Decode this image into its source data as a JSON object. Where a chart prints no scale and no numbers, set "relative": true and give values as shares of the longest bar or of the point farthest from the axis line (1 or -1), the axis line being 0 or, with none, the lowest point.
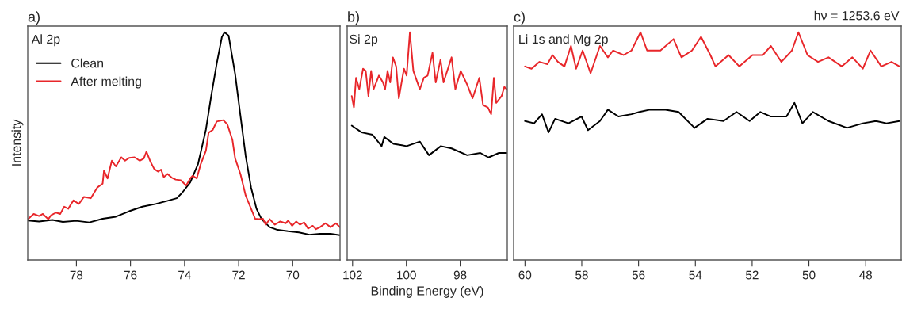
{
  "chart_data": [
    {
      "type": "line",
      "title": "a)",
      "ylabel": "Intensity",
      "annotations": [
        "Al 2p"
      ],
      "relative": true,
      "legend": "top left",
      "grid": false,
      "xlim": [
        79.8,
        68.25
      ],
      "xticks": [
        78,
        76,
        74,
        72,
        70
      ],
      "series": [
        {
          "name": "Clean",
          "color": "#000000",
          "x": [
            79.79,
            79.38,
            78.89,
            78.5,
            78.01,
            77.52,
            77.03,
            76.54,
            76.05,
            75.56,
            75.07,
            74.68,
            74.29,
            74.09,
            73.79,
            73.5,
            73.21,
            73.01,
            72.81,
            72.62,
            72.52,
            72.37,
            72.13,
            71.93,
            71.74,
            71.54,
            71.34,
            71.15,
            70.85,
            70.56,
            70.17,
            69.77,
            69.38,
            68.99,
            68.6,
            68.26
          ],
          "values": [
            0.173,
            0.169,
            0.176,
            0.167,
            0.172,
            0.165,
            0.181,
            0.19,
            0.214,
            0.234,
            0.246,
            0.258,
            0.271,
            0.295,
            0.341,
            0.422,
            0.573,
            0.724,
            0.863,
            0.979,
            1.0,
            0.985,
            0.817,
            0.631,
            0.457,
            0.318,
            0.225,
            0.179,
            0.144,
            0.132,
            0.126,
            0.121,
            0.111,
            0.115,
            0.115,
            0.109
          ]
        },
        {
          "name": "After melting",
          "color": "#e8262a",
          "x": [
            79.79,
            79.58,
            79.38,
            79.24,
            79.04,
            78.94,
            78.75,
            78.6,
            78.45,
            78.3,
            78.11,
            77.91,
            77.72,
            77.47,
            77.23,
            77.03,
            76.98,
            76.85,
            76.69,
            76.54,
            76.34,
            76.2,
            76.05,
            75.85,
            75.66,
            75.51,
            75.41,
            75.27,
            75.12,
            74.97,
            74.87,
            74.77,
            74.63,
            74.48,
            74.33,
            74.14,
            73.94,
            73.79,
            73.7,
            73.55,
            73.4,
            73.21,
            73.11,
            72.96,
            72.81,
            72.57,
            72.42,
            72.23,
            72.13,
            71.93,
            71.74,
            71.54,
            71.39,
            71.25,
            71.1,
            71.0,
            70.85,
            70.66,
            70.46,
            70.26,
            70.17,
            70.02,
            69.87,
            69.73,
            69.58,
            69.43,
            69.26,
            69.14,
            68.99,
            68.79,
            68.6,
            68.4,
            68.26
          ],
          "values": [
            0.179,
            0.202,
            0.193,
            0.202,
            0.179,
            0.196,
            0.208,
            0.202,
            0.234,
            0.225,
            0.262,
            0.246,
            0.277,
            0.271,
            0.318,
            0.335,
            0.393,
            0.358,
            0.436,
            0.411,
            0.451,
            0.436,
            0.448,
            0.451,
            0.436,
            0.445,
            0.476,
            0.434,
            0.399,
            0.388,
            0.397,
            0.364,
            0.378,
            0.362,
            0.353,
            0.35,
            0.327,
            0.358,
            0.37,
            0.358,
            0.422,
            0.48,
            0.559,
            0.571,
            0.608,
            0.614,
            0.596,
            0.527,
            0.446,
            0.376,
            0.283,
            0.225,
            0.181,
            0.179,
            0.181,
            0.155,
            0.179,
            0.155,
            0.169,
            0.161,
            0.173,
            0.15,
            0.169,
            0.155,
            0.165,
            0.138,
            0.15,
            0.135,
            0.144,
            0.161,
            0.144,
            0.161,
            0.144
          ]
        }
      ]
    },
    {
      "type": "line",
      "title": "b)",
      "xlabel": "Binding Energy (eV)",
      "annotations": [
        "Si 2p"
      ],
      "relative": true,
      "grid": false,
      "xlim": [
        102.2,
        96.25
      ],
      "xticks": [
        102,
        100,
        98
      ],
      "series": [
        {
          "color": "#000000",
          "x": [
            102.03,
            101.66,
            101.26,
            100.92,
            100.82,
            100.48,
            99.99,
            99.5,
            99.16,
            98.72,
            98.32,
            97.74,
            97.25,
            96.95,
            96.56,
            96.27
          ],
          "values": [
            0.59,
            0.56,
            0.55,
            0.5,
            0.54,
            0.51,
            0.5,
            0.52,
            0.46,
            0.5,
            0.49,
            0.46,
            0.47,
            0.45,
            0.47,
            0.47
          ]
        },
        {
          "color": "#e8262a",
          "x": [
            102.03,
            101.95,
            101.87,
            101.75,
            101.61,
            101.51,
            101.41,
            101.31,
            101.22,
            101.02,
            100.87,
            100.79,
            100.7,
            100.6,
            100.5,
            100.38,
            100.28,
            100.09,
            99.99,
            99.87,
            99.74,
            99.5,
            99.35,
            99.21,
            99.03,
            98.91,
            98.73,
            98.62,
            98.32,
            98.18,
            97.98,
            97.74,
            97.54,
            97.29,
            97.15,
            96.97,
            96.85,
            96.75,
            96.66,
            96.46,
            96.36,
            96.27
          ],
          "values": [
            0.72,
            0.67,
            0.8,
            0.75,
            0.84,
            0.83,
            0.72,
            0.83,
            0.75,
            0.81,
            0.78,
            0.75,
            0.83,
            0.78,
            0.89,
            0.85,
            0.71,
            0.84,
            0.81,
            1.0,
            0.83,
            0.75,
            0.8,
            0.81,
            0.91,
            0.78,
            0.88,
            0.78,
            0.89,
            0.75,
            0.83,
            0.77,
            0.71,
            0.8,
            0.68,
            0.67,
            0.64,
            0.8,
            0.69,
            0.72,
            0.76,
            0.75
          ]
        }
      ]
    },
    {
      "type": "line",
      "title": "c)",
      "annotations": [
        "Li 1s and Mg 2p",
        "hν = 1253.6 eV"
      ],
      "relative": true,
      "grid": false,
      "xlim": [
        60.4,
        46.75
      ],
      "xticks": [
        60,
        58,
        56,
        54,
        52,
        50,
        48
      ],
      "series": [
        {
          "color": "#000000",
          "x": [
            60.0,
            59.68,
            59.4,
            59.17,
            58.94,
            58.47,
            58.01,
            57.78,
            57.36,
            57.08,
            56.71,
            56.25,
            55.97,
            55.6,
            55.05,
            54.59,
            54.03,
            53.57,
            53.01,
            52.55,
            52.09,
            51.71,
            51.34,
            50.79,
            50.51,
            50.23,
            49.86,
            49.31,
            48.66,
            48.1,
            47.64,
            47.27,
            46.81
          ],
          "values": [
            0.61,
            0.6,
            0.64,
            0.56,
            0.62,
            0.6,
            0.63,
            0.57,
            0.61,
            0.66,
            0.63,
            0.64,
            0.65,
            0.66,
            0.66,
            0.65,
            0.58,
            0.62,
            0.61,
            0.65,
            0.61,
            0.65,
            0.63,
            0.63,
            0.69,
            0.6,
            0.65,
            0.61,
            0.58,
            0.6,
            0.61,
            0.6,
            0.61
          ]
        },
        {
          "color": "#e8262a",
          "x": [
            60.0,
            59.77,
            59.49,
            59.21,
            59.03,
            58.84,
            58.61,
            58.38,
            58.2,
            57.97,
            57.69,
            57.36,
            57.08,
            56.9,
            56.53,
            56.25,
            55.93,
            55.7,
            55.23,
            54.77,
            54.49,
            54.12,
            53.8,
            53.47,
            53.29,
            52.83,
            52.45,
            51.99,
            51.62,
            51.34,
            50.97,
            50.6,
            50.37,
            50.05,
            49.68,
            49.31,
            48.84,
            48.47,
            48.1,
            47.83,
            47.45,
            47.09,
            46.81
          ],
          "values": [
            0.85,
            0.84,
            0.87,
            0.86,
            0.9,
            0.87,
            0.85,
            0.94,
            0.84,
            0.92,
            0.82,
            0.94,
            0.89,
            0.92,
            0.9,
            0.92,
            1.0,
            0.92,
            0.92,
            0.97,
            0.89,
            0.92,
            0.98,
            0.9,
            0.85,
            0.9,
            0.85,
            0.9,
            0.9,
            0.94,
            0.87,
            0.92,
            1.0,
            0.9,
            0.87,
            0.89,
            0.85,
            0.89,
            0.84,
            0.92,
            0.85,
            0.87,
            0.85
          ]
        }
      ]
    }
  ]
}
